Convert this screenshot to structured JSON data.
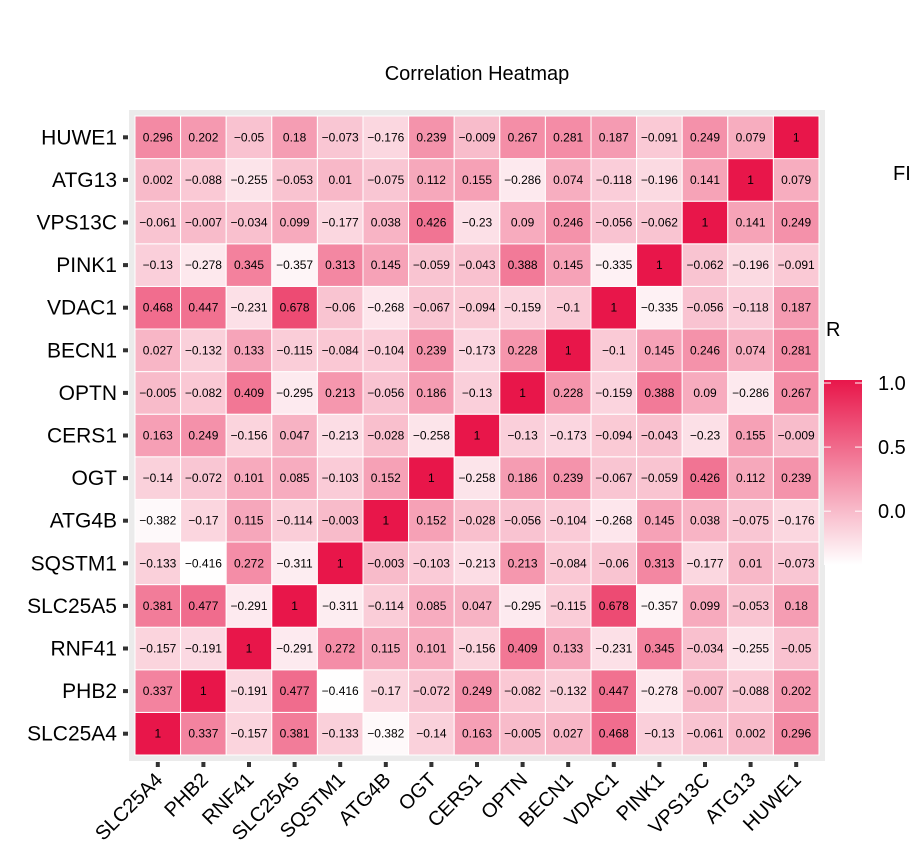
{
  "chart_data": {
    "type": "heatmap",
    "title": "Correlation Heatmap",
    "labels": [
      "SLC25A4",
      "PHB2",
      "RNF41",
      "SLC25A5",
      "SQSTM1",
      "ATG4B",
      "OGT",
      "CERS1",
      "OPTN",
      "BECN1",
      "VDAC1",
      "PINK1",
      "VPS13C",
      "ATG13",
      "HUWE1"
    ],
    "matrix": [
      [
        "1",
        "0.337",
        "−0.157",
        "0.381",
        "−0.133",
        "−0.382",
        "−0.14",
        "0.163",
        "−0.005",
        "0.027",
        "0.468",
        "−0.13",
        "−0.061",
        "0.002",
        "0.296"
      ],
      [
        "0.337",
        "1",
        "−0.191",
        "0.477",
        "−0.416",
        "−0.17",
        "−0.072",
        "0.249",
        "−0.082",
        "−0.132",
        "0.447",
        "−0.278",
        "−0.007",
        "−0.088",
        "0.202"
      ],
      [
        "−0.157",
        "−0.191",
        "1",
        "−0.291",
        "0.272",
        "0.115",
        "0.101",
        "−0.156",
        "0.409",
        "0.133",
        "−0.231",
        "0.345",
        "−0.034",
        "−0.255",
        "−0.05"
      ],
      [
        "0.381",
        "0.477",
        "−0.291",
        "1",
        "−0.311",
        "−0.114",
        "0.085",
        "0.047",
        "−0.295",
        "−0.115",
        "0.678",
        "−0.357",
        "0.099",
        "−0.053",
        "0.18"
      ],
      [
        "−0.133",
        "−0.416",
        "0.272",
        "−0.311",
        "1",
        "−0.003",
        "−0.103",
        "−0.213",
        "0.213",
        "−0.084",
        "−0.06",
        "0.313",
        "−0.177",
        "0.01",
        "−0.073"
      ],
      [
        "−0.382",
        "−0.17",
        "0.115",
        "−0.114",
        "−0.003",
        "1",
        "0.152",
        "−0.028",
        "−0.056",
        "−0.104",
        "−0.268",
        "0.145",
        "0.038",
        "−0.075",
        "−0.176"
      ],
      [
        "−0.14",
        "−0.072",
        "0.101",
        "0.085",
        "−0.103",
        "0.152",
        "1",
        "−0.258",
        "0.186",
        "0.239",
        "−0.067",
        "−0.059",
        "0.426",
        "0.112",
        "0.239"
      ],
      [
        "0.163",
        "0.249",
        "−0.156",
        "0.047",
        "−0.213",
        "−0.028",
        "−0.258",
        "1",
        "−0.13",
        "−0.173",
        "−0.094",
        "−0.043",
        "−0.23",
        "0.155",
        "−0.009"
      ],
      [
        "−0.005",
        "−0.082",
        "0.409",
        "−0.295",
        "0.213",
        "−0.056",
        "0.186",
        "−0.13",
        "1",
        "0.228",
        "−0.159",
        "0.388",
        "0.09",
        "−0.286",
        "0.267"
      ],
      [
        "0.027",
        "−0.132",
        "0.133",
        "−0.115",
        "−0.084",
        "−0.104",
        "0.239",
        "−0.173",
        "0.228",
        "1",
        "−0.1",
        "0.145",
        "0.246",
        "0.074",
        "0.281"
      ],
      [
        "0.468",
        "0.447",
        "−0.231",
        "0.678",
        "−0.06",
        "−0.268",
        "−0.067",
        "−0.094",
        "−0.159",
        "−0.1",
        "1",
        "−0.335",
        "−0.056",
        "−0.118",
        "0.187"
      ],
      [
        "−0.13",
        "−0.278",
        "0.345",
        "−0.357",
        "0.313",
        "0.145",
        "−0.059",
        "−0.043",
        "0.388",
        "0.145",
        "−0.335",
        "1",
        "−0.062",
        "−0.196",
        "−0.091"
      ],
      [
        "−0.061",
        "−0.007",
        "−0.034",
        "0.099",
        "−0.177",
        "0.038",
        "0.426",
        "−0.23",
        "0.09",
        "0.246",
        "−0.056",
        "−0.062",
        "1",
        "0.141",
        "0.249"
      ],
      [
        "0.002",
        "−0.088",
        "−0.255",
        "−0.053",
        "0.01",
        "−0.075",
        "0.112",
        "0.155",
        "−0.286",
        "0.074",
        "−0.118",
        "−0.196",
        "0.141",
        "1",
        "0.079"
      ],
      [
        "0.296",
        "0.202",
        "−0.05",
        "0.18",
        "−0.073",
        "−0.176",
        "0.239",
        "−0.009",
        "0.267",
        "0.281",
        "0.187",
        "−0.091",
        "0.249",
        "0.079",
        "1"
      ]
    ],
    "legend": {
      "title": "R",
      "ticks": [
        "1.0",
        "0.5",
        "0.0"
      ],
      "range": [
        -0.42,
        1.0
      ],
      "colors": {
        "low": "#ffffff",
        "high": "#e8164a"
      }
    },
    "cutoff_text": "FI"
  }
}
